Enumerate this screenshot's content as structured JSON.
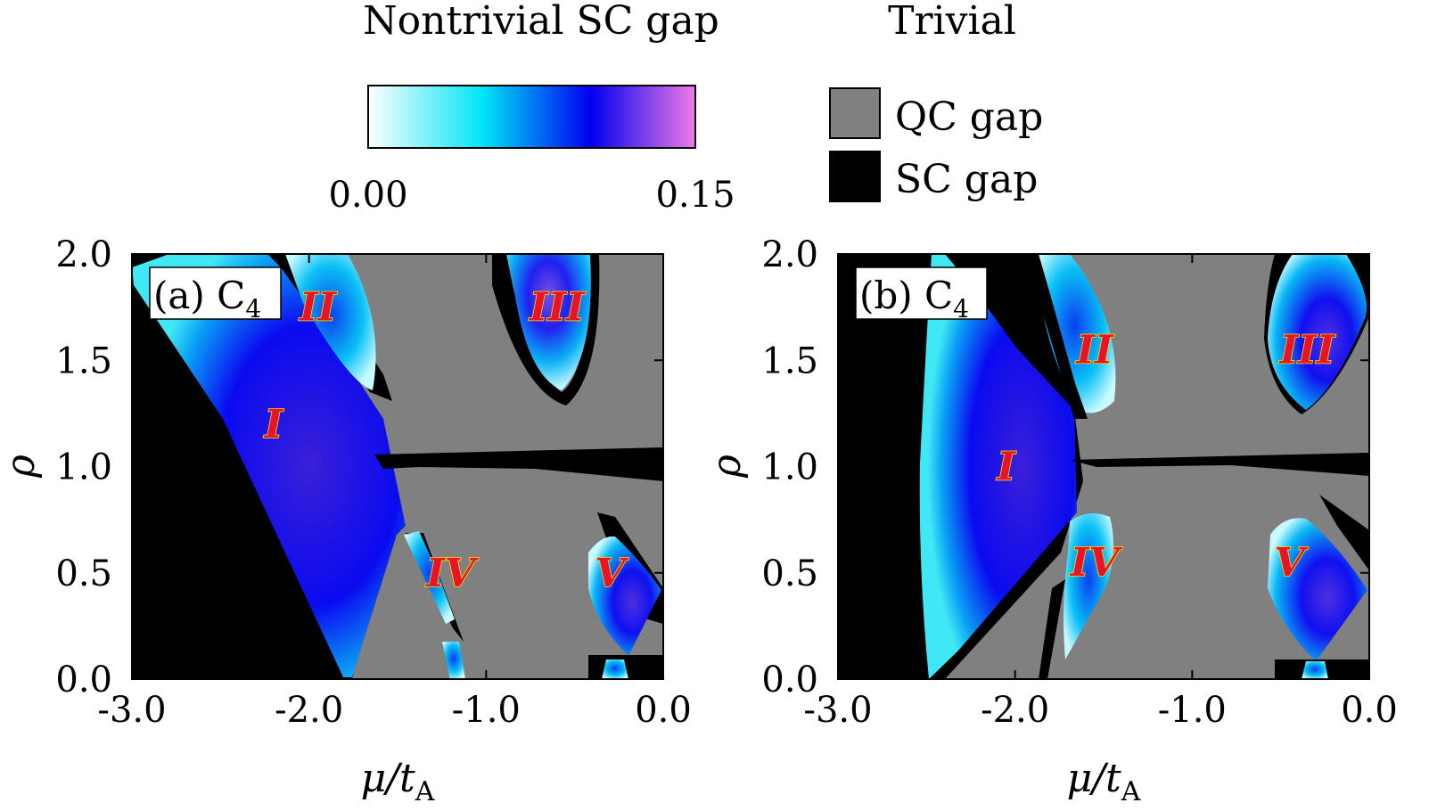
{
  "legend": {
    "nontrivial_title": "Nontrivial SC gap",
    "trivial_title": "Trivial",
    "colorbar_min": "0.00",
    "colorbar_max": "0.15",
    "colorbar_stops": [
      "#ffffff",
      "#00e5f5",
      "#0000f0",
      "#f07ae6"
    ],
    "trivial_items": [
      {
        "label": "QC gap",
        "color": "#808080"
      },
      {
        "label": "SC gap",
        "color": "#000000"
      }
    ]
  },
  "chart_data": [
    {
      "type": "heatmap",
      "panel_label": "(a) C",
      "panel_label_sub": "4",
      "xlabel": "μ/t",
      "xlabel_sub": "A",
      "ylabel": "ρ",
      "xlim": [
        -3.0,
        0.0
      ],
      "ylim": [
        0.0,
        2.0
      ],
      "xticks": [
        "-3.0",
        "-2.0",
        "-1.0",
        "0.0"
      ],
      "yticks": [
        "0.0",
        "0.5",
        "1.0",
        "1.5",
        "2.0"
      ],
      "regions": [
        {
          "label": "I",
          "mu": -2.2,
          "rho": 1.2
        },
        {
          "label": "II",
          "mu": -1.95,
          "rho": 1.75
        },
        {
          "label": "III",
          "mu": -0.6,
          "rho": 1.75
        },
        {
          "label": "IV",
          "mu": -1.2,
          "rho": 0.5
        },
        {
          "label": "V",
          "mu": -0.3,
          "rho": 0.5
        }
      ]
    },
    {
      "type": "heatmap",
      "panel_label": "(b) C",
      "panel_label_sub": "4",
      "xlabel": "μ/t",
      "xlabel_sub": "A",
      "ylabel": "ρ",
      "xlim": [
        -3.0,
        0.0
      ],
      "ylim": [
        0.0,
        2.0
      ],
      "xticks": [
        "-3.0",
        "-2.0",
        "-1.0",
        "0.0"
      ],
      "yticks": [
        "0.0",
        "0.5",
        "1.0",
        "1.5",
        "2.0"
      ],
      "regions": [
        {
          "label": "I",
          "mu": -2.05,
          "rho": 1.0
        },
        {
          "label": "II",
          "mu": -1.55,
          "rho": 1.55
        },
        {
          "label": "III",
          "mu": -0.35,
          "rho": 1.55
        },
        {
          "label": "IV",
          "mu": -1.55,
          "rho": 0.55
        },
        {
          "label": "V",
          "mu": -0.45,
          "rho": 0.55
        }
      ]
    }
  ]
}
